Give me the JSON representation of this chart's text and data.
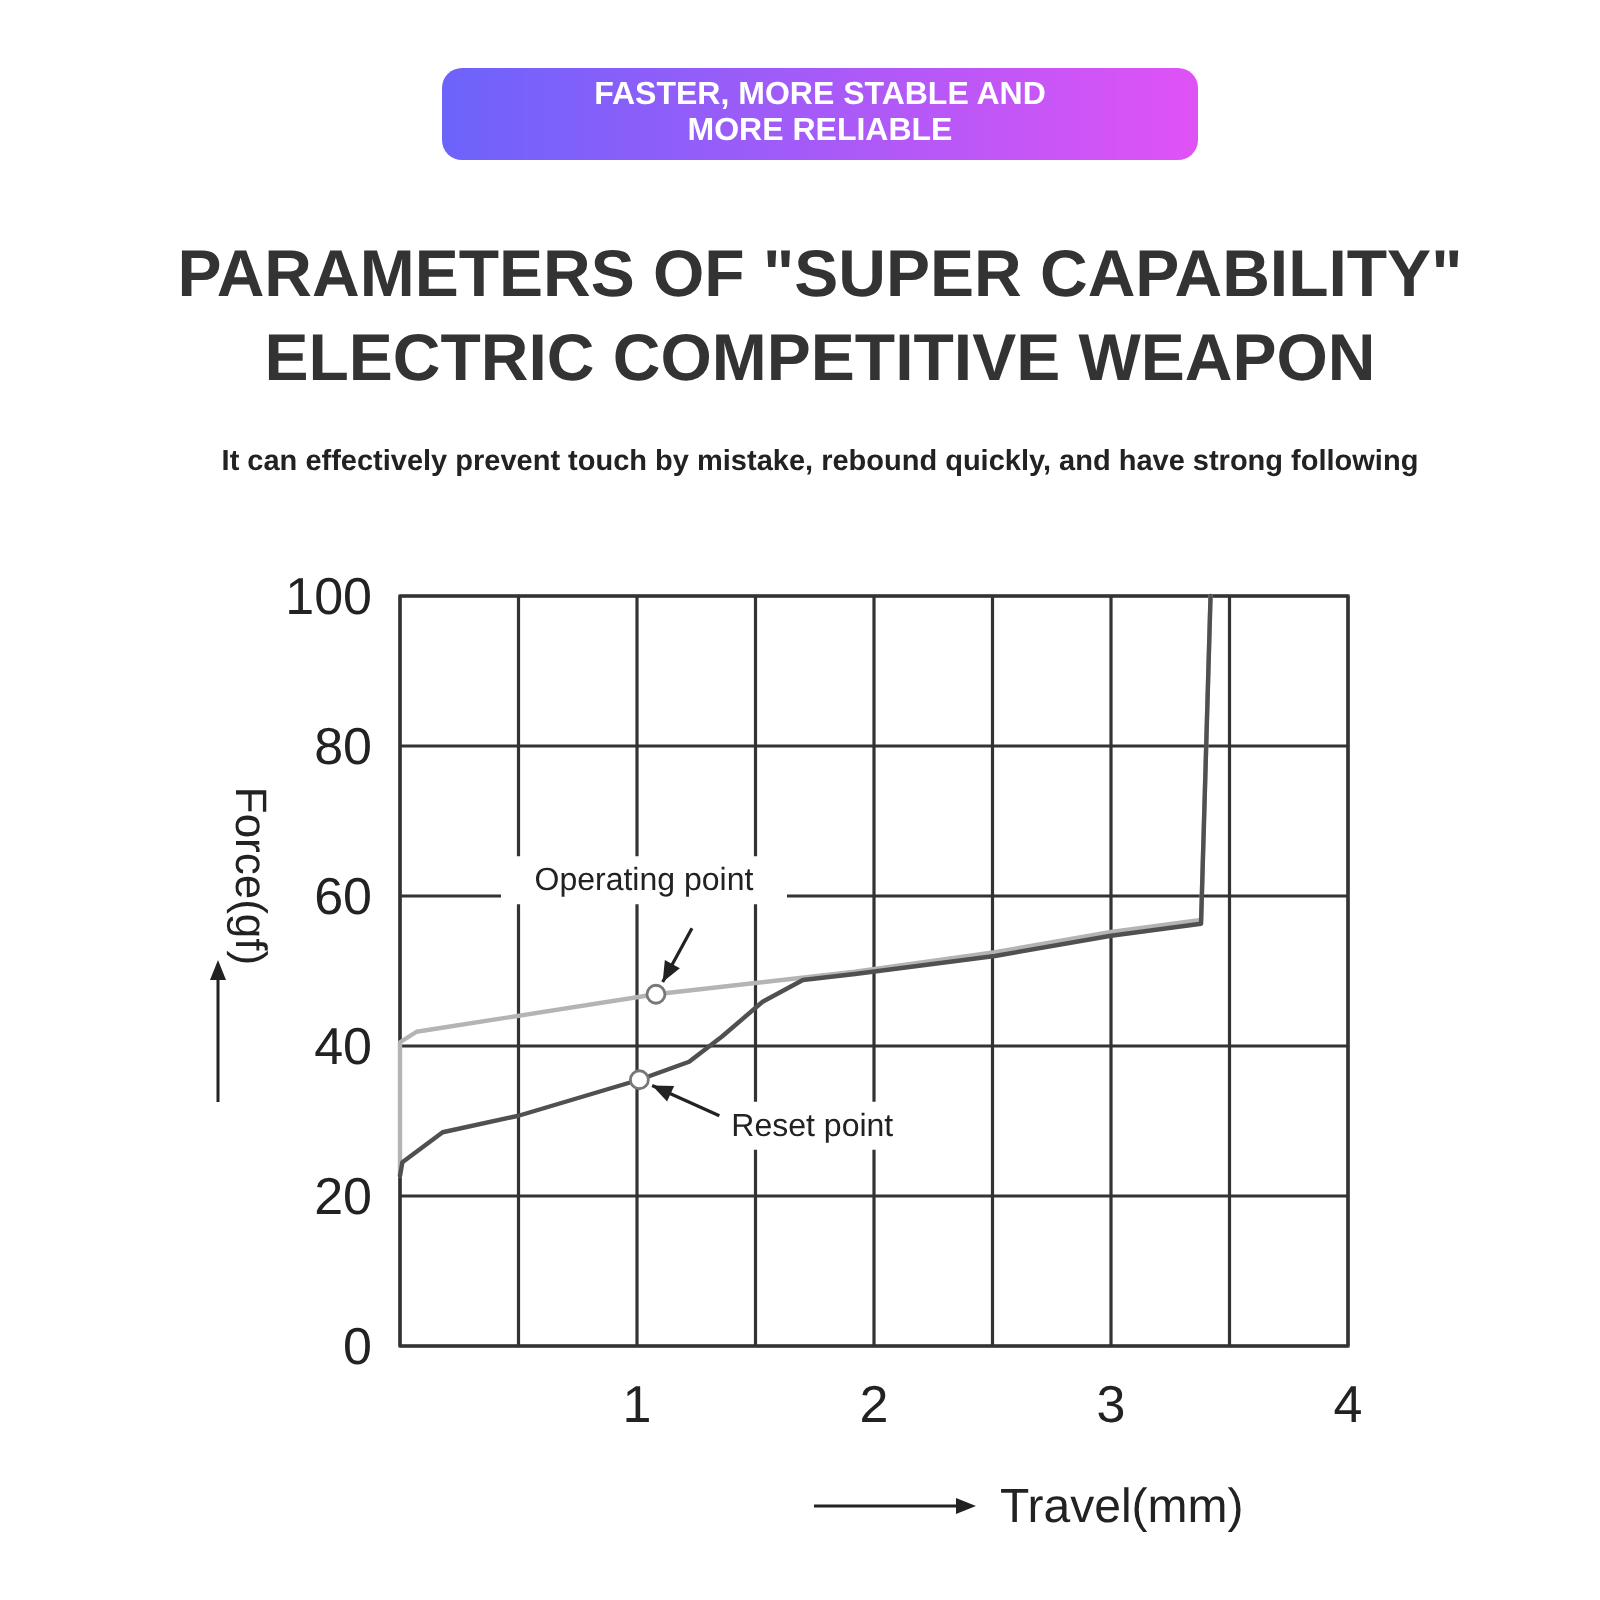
{
  "chart_data": {
    "type": "line",
    "title": "PARAMETERS OF \"SUPER CAPABILITY\" ELECTRIC COMPETITIVE WEAPON",
    "subtitle": "It can effectively prevent touch by mistake, rebound quickly, and have strong following",
    "xlabel": "Travel(mm)",
    "ylabel": "Force(gf)",
    "annotations": [
      "FASTER, MORE STABLE AND MORE RELIABLE",
      {
        "text": "Operating point",
        "x": 1.08,
        "y": 46.9
      },
      {
        "text": "Reset point",
        "x": 1.01,
        "y": 35.5
      }
    ],
    "series": [
      {
        "color": "#b4b4b4",
        "x": [
          0,
          0,
          0.07,
          1.08,
          1.92,
          2.51,
          3.0,
          3.38,
          3.42
        ],
        "values": [
          22.7,
          40.5,
          41.9,
          46.9,
          49.9,
          52.5,
          55.2,
          56.8,
          100
        ]
      },
      {
        "color": "#505050",
        "x": [
          3.42,
          3.38,
          3.0,
          2.51,
          1.92,
          1.7,
          1.53,
          1.36,
          1.22,
          1.01,
          0.5,
          0.18,
          0.01,
          0
        ],
        "values": [
          100,
          56.3,
          54.7,
          52,
          49.6,
          48.8,
          45.9,
          41.3,
          37.9,
          35.5,
          30.7,
          28.5,
          24.5,
          22.7
        ]
      }
    ],
    "xlim": [
      0,
      4
    ],
    "ylim": [
      0,
      100
    ],
    "xticks": [
      {
        "value": 0,
        "label": null
      },
      {
        "value": 0.5,
        "label": null
      },
      1,
      {
        "value": 1.5,
        "label": null
      },
      2,
      {
        "value": 2.5,
        "label": null
      },
      3,
      {
        "value": 3.5,
        "label": null
      },
      4
    ],
    "yticks": [
      0,
      20,
      40,
      60,
      80,
      100
    ],
    "grid": true,
    "marker": "none",
    "line_style": "solid"
  }
}
